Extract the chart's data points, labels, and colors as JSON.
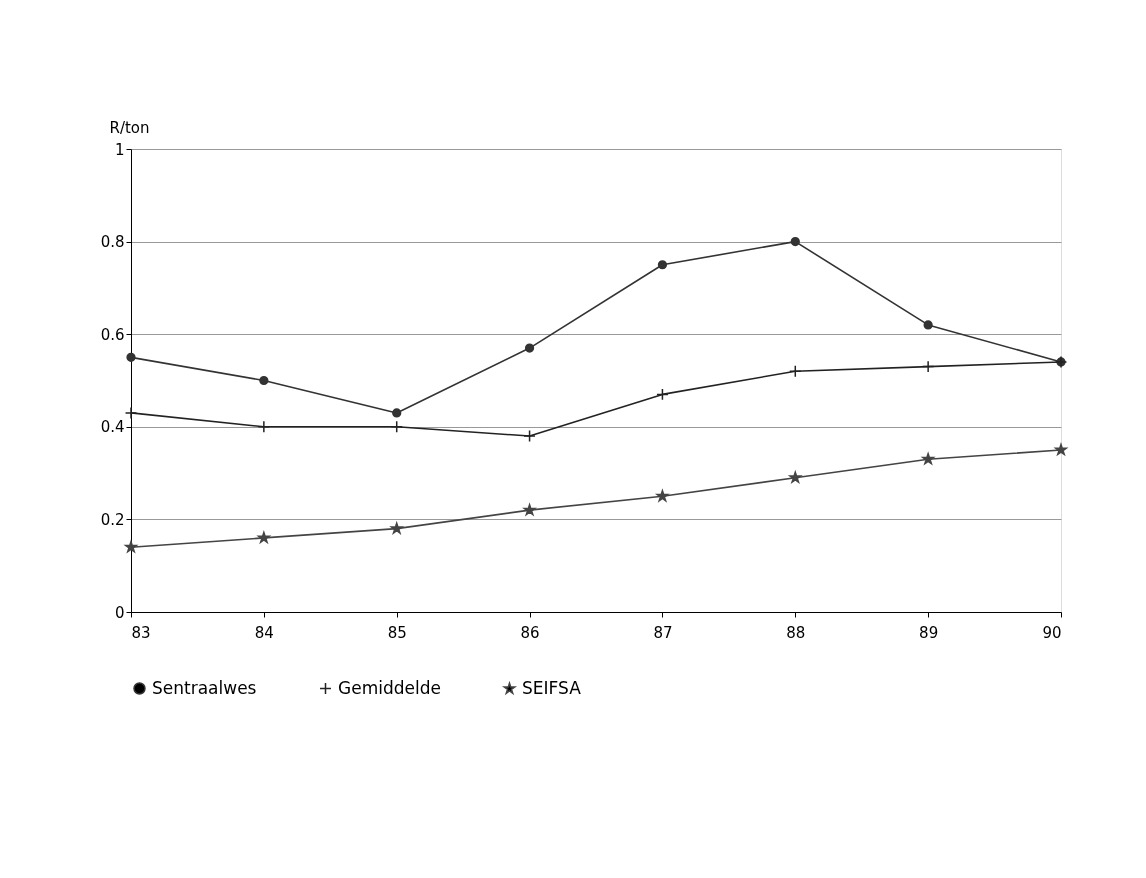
{
  "chart_data": {
    "type": "line",
    "ylabel": "R/ton",
    "categories": [
      "83",
      "84",
      "85",
      "86",
      "87",
      "88",
      "89",
      "90"
    ],
    "series": [
      {
        "name": "Sentraalwes",
        "color": "#333333",
        "marker": "circle",
        "values": [
          0.55,
          0.5,
          0.43,
          0.57,
          0.75,
          0.8,
          0.62,
          0.54
        ]
      },
      {
        "name": "Gemiddelde",
        "color": "#222222",
        "marker": "cross",
        "values": [
          0.43,
          0.4,
          0.4,
          0.38,
          0.47,
          0.52,
          0.53,
          0.54
        ]
      },
      {
        "name": "SEIFSA",
        "color": "#444444",
        "marker": "star",
        "values": [
          0.14,
          0.16,
          0.18,
          0.22,
          0.25,
          0.29,
          0.33,
          0.35
        ]
      }
    ],
    "ylim": [
      0,
      1
    ],
    "yticks": [
      0,
      0.2,
      0.4,
      0.6,
      0.8,
      1
    ],
    "grid": "y",
    "legend": "bottom"
  }
}
